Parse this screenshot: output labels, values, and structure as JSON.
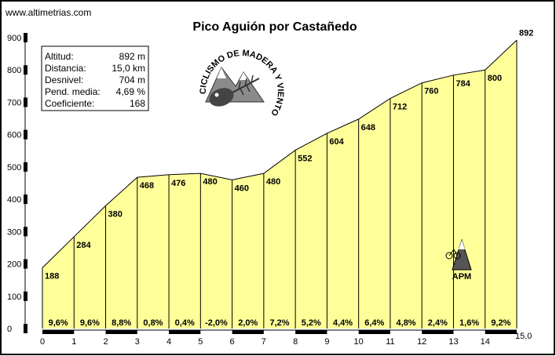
{
  "website": "www.altimetrias.com",
  "chart_data": {
    "type": "area",
    "title": "Pico Aguión por Castañedo",
    "x": [
      0,
      1,
      2,
      3,
      4,
      5,
      6,
      7,
      8,
      9,
      10,
      11,
      12,
      13,
      14,
      15
    ],
    "elevation": [
      188,
      284,
      380,
      468,
      476,
      480,
      460,
      480,
      552,
      604,
      648,
      712,
      760,
      784,
      800,
      892
    ],
    "elevation_labels": [
      "188",
      "284",
      "380",
      "468",
      "476",
      "480",
      "460",
      "480",
      "552",
      "604",
      "648",
      "712",
      "760",
      "784",
      "800",
      "892"
    ],
    "gradients": [
      "9,6%",
      "9,6%",
      "8,8%",
      "0,8%",
      "0,4%",
      "-2,0%",
      "2,0%",
      "7,2%",
      "5,2%",
      "4,4%",
      "6,4%",
      "4,8%",
      "2,4%",
      "1,6%",
      "9,2%"
    ],
    "x_ticks": [
      "0",
      "1",
      "2",
      "3",
      "4",
      "5",
      "6",
      "7",
      "8",
      "9",
      "10",
      "11",
      "12",
      "13",
      "14"
    ],
    "x_end_label": "15,0",
    "y_ticks": [
      "0",
      "100",
      "200",
      "300",
      "400",
      "500",
      "600",
      "700",
      "800",
      "900"
    ],
    "xlim": [
      0,
      15
    ],
    "ylim": [
      0,
      900
    ],
    "fill_color": "#ffff99",
    "grid": false
  },
  "info_box": {
    "rows": [
      {
        "label": "Altitud:",
        "value": "892 m"
      },
      {
        "label": "Distancia:",
        "value": "15,0 km"
      },
      {
        "label": "Desnivel:",
        "value": "704 m"
      },
      {
        "label": "Pend. media:",
        "value": "4,69 %"
      },
      {
        "label": "Coeficiente:",
        "value": "168"
      }
    ]
  },
  "logo": {
    "text": "CICLISMO DE MADERA Y VIENTO"
  },
  "apm_badge": {
    "text": "APM"
  }
}
